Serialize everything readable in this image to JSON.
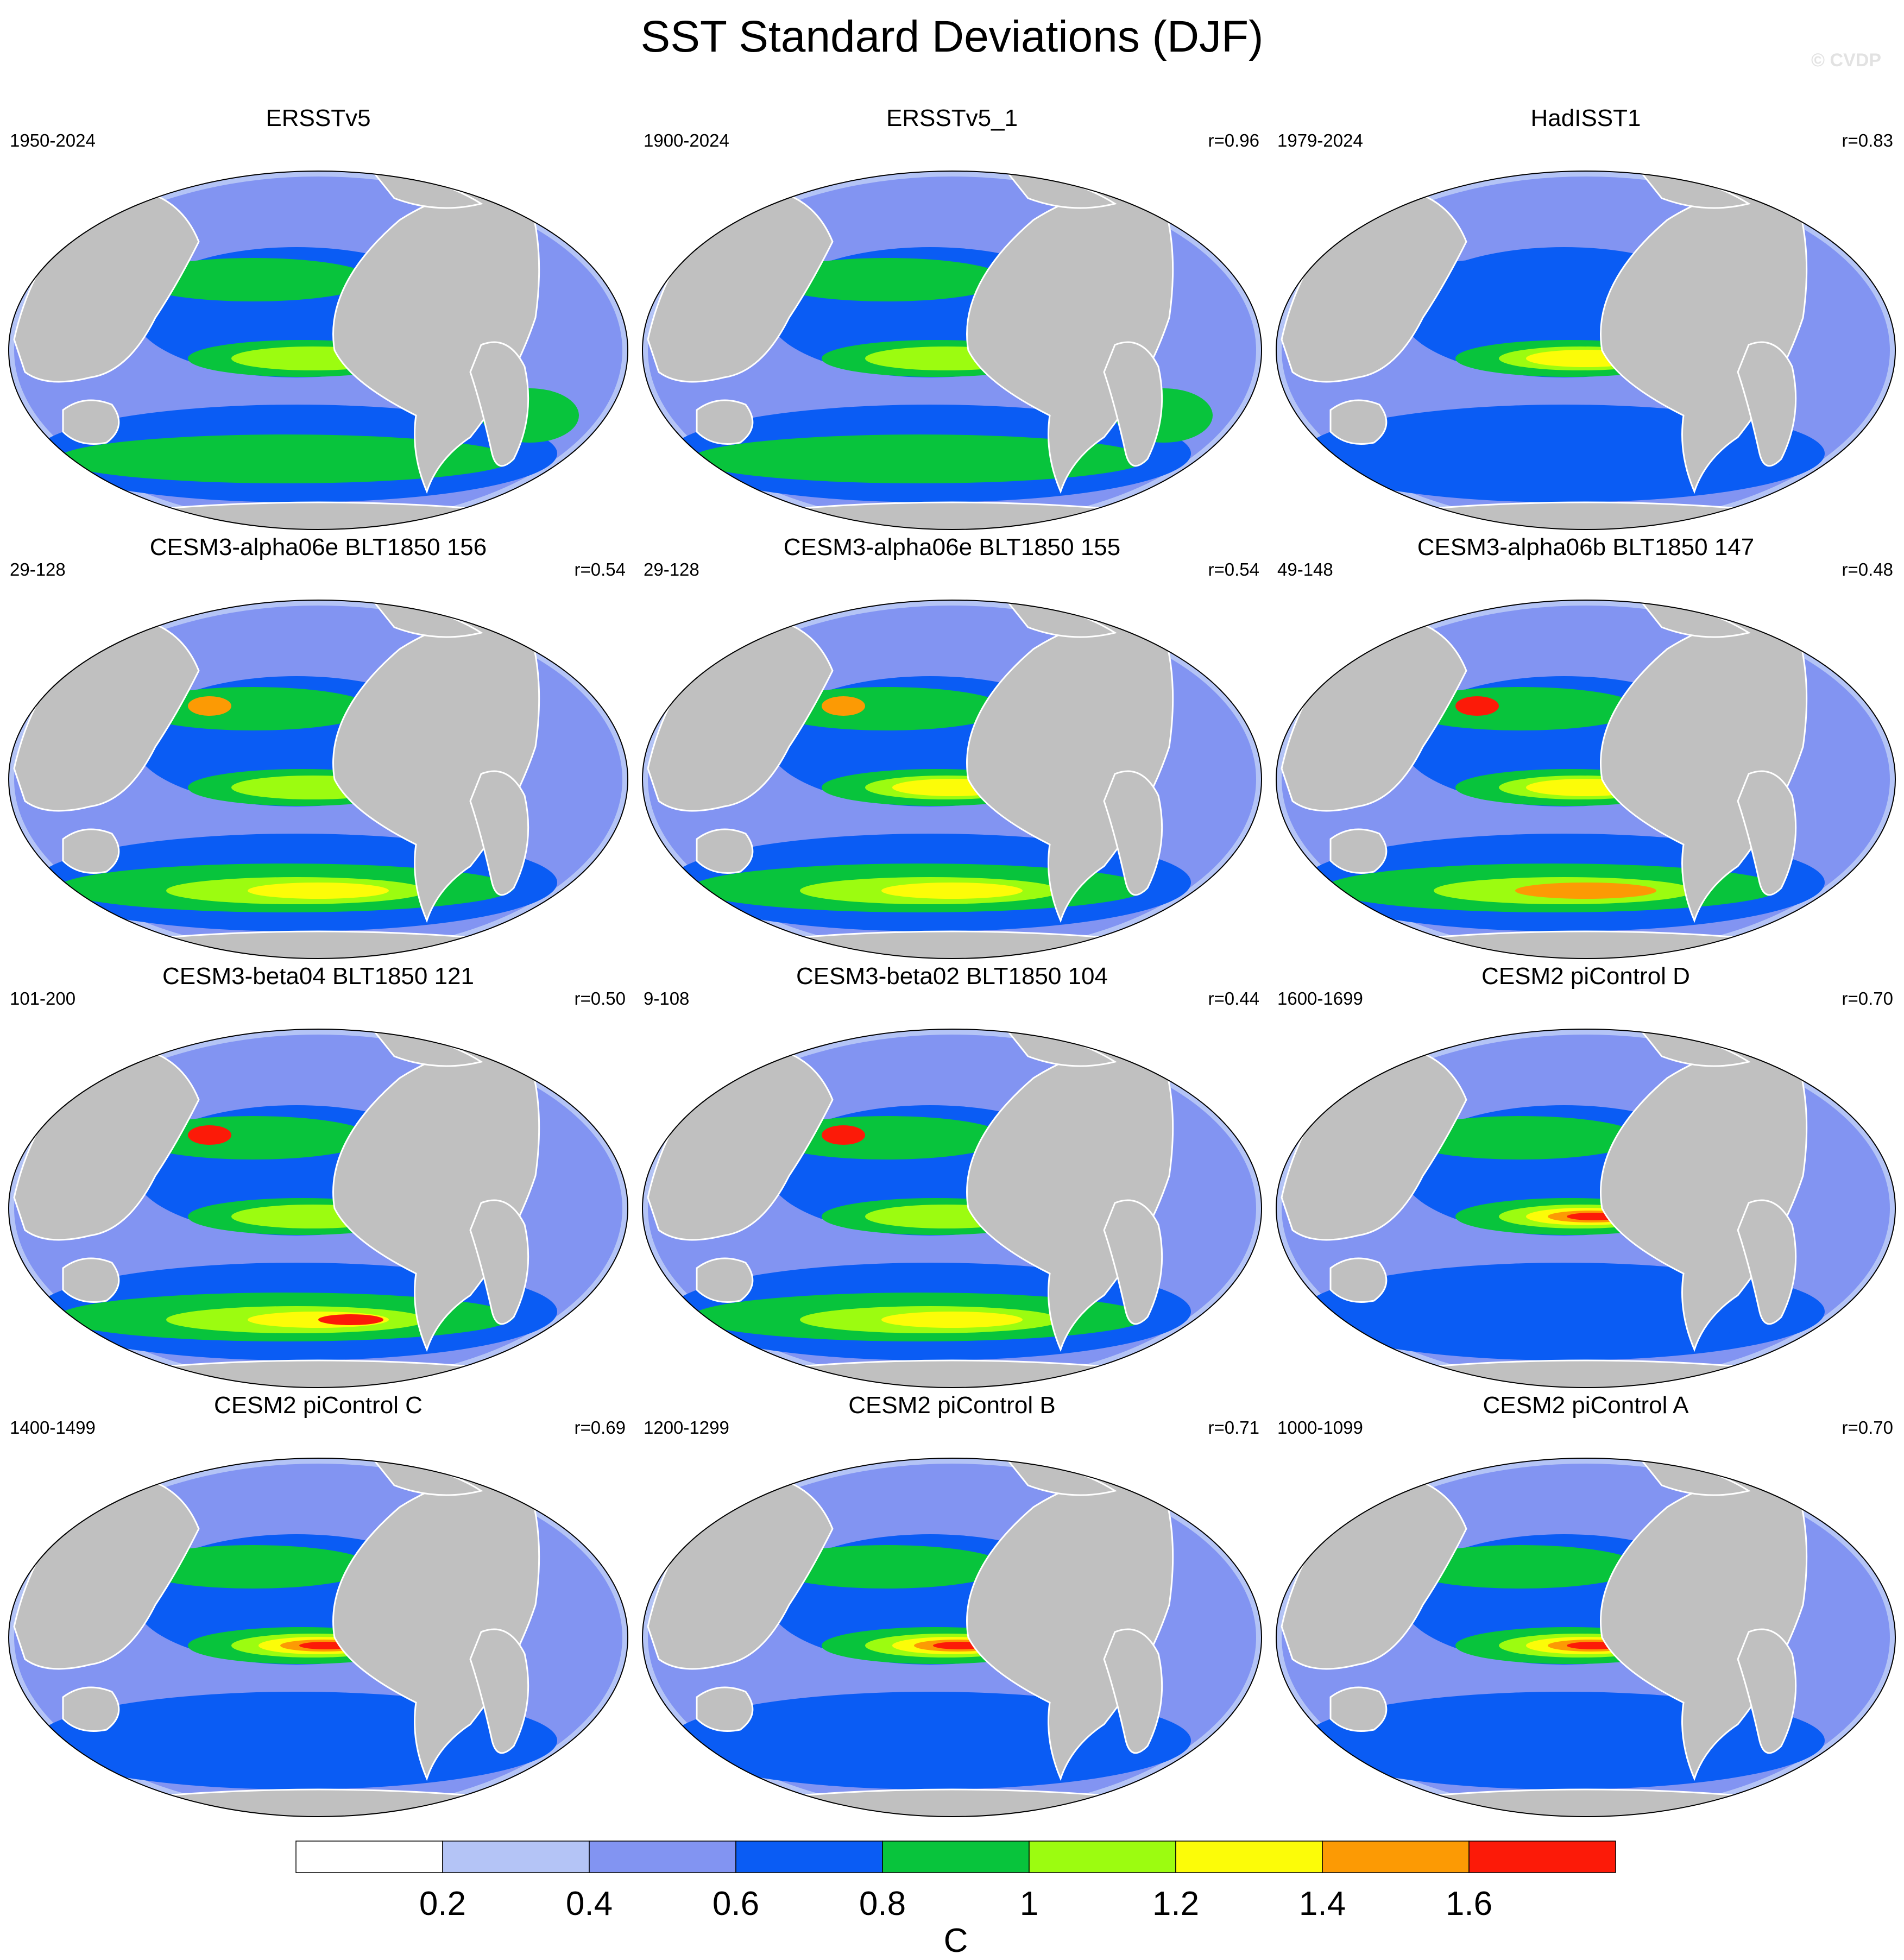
{
  "figure": {
    "title": "SST Standard Deviations (DJF)",
    "watermark": "© CVDP"
  },
  "chart_data": {
    "type": "heatmap",
    "projection": "Robinson (global map panels)",
    "land_color": "#c0c0c0",
    "panels": [
      {
        "title": "ERSSTv5",
        "years": "1950-2024",
        "corr": "",
        "equatorial_pacific_max_level": 1.2,
        "regions": [
          [
            "nino",
            [
              0.9,
              1.0,
              1.1
            ]
          ],
          [
            "n_pacific",
            [
              0.9
            ]
          ],
          [
            "n_atlantic",
            [
              0.8
            ]
          ],
          [
            "s_ocean",
            [
              0.9
            ]
          ],
          [
            "s_atlantic",
            [
              0.9
            ]
          ]
        ]
      },
      {
        "title": "ERSSTv5_1",
        "years": "1900-2024",
        "corr": "r=0.96",
        "equatorial_pacific_max_level": 1.2,
        "regions": [
          [
            "nino",
            [
              0.9,
              1.0,
              1.1
            ]
          ],
          [
            "n_pacific",
            [
              0.9
            ]
          ],
          [
            "n_atlantic",
            [
              0.8
            ]
          ],
          [
            "s_ocean",
            [
              0.9
            ]
          ],
          [
            "s_atlantic",
            [
              0.9
            ]
          ]
        ]
      },
      {
        "title": "HadISST1",
        "years": "1979-2024",
        "corr": "r=0.83",
        "equatorial_pacific_max_level": 1.4,
        "regions": [
          [
            "nino",
            [
              0.9,
              1.1,
              1.3
            ]
          ],
          [
            "n_pacific",
            [
              0.7
            ]
          ],
          [
            "n_atlantic",
            [
              0.9
            ]
          ],
          [
            "s_ocean",
            [
              0.7
            ]
          ]
        ]
      },
      {
        "title": "CESM3-alpha06e BLT1850 156",
        "years": "29-128",
        "corr": "r=0.54",
        "equatorial_pacific_max_level": 1.2,
        "regions": [
          [
            "nino",
            [
              0.9,
              1.1
            ]
          ],
          [
            "n_pacific",
            [
              0.9,
              1.5
            ]
          ],
          [
            "n_atlantic",
            [
              0.9,
              1.5,
              1.7
            ]
          ],
          [
            "s_ocean",
            [
              0.9,
              1.1,
              1.3
            ]
          ]
        ]
      },
      {
        "title": "CESM3-alpha06e BLT1850 155",
        "years": "29-128",
        "corr": "r=0.54",
        "equatorial_pacific_max_level": 1.4,
        "regions": [
          [
            "nino",
            [
              0.9,
              1.1,
              1.3
            ]
          ],
          [
            "n_pacific",
            [
              0.9,
              1.5
            ]
          ],
          [
            "n_atlantic",
            [
              0.9,
              1.5,
              1.7
            ]
          ],
          [
            "s_ocean",
            [
              0.9,
              1.1,
              1.3
            ]
          ]
        ]
      },
      {
        "title": "CESM3-alpha06b BLT1850 147",
        "years": "49-148",
        "corr": "r=0.48",
        "equatorial_pacific_max_level": 1.4,
        "regions": [
          [
            "nino",
            [
              0.9,
              1.1,
              1.3
            ]
          ],
          [
            "n_pacific",
            [
              0.9,
              1.7
            ]
          ],
          [
            "n_atlantic",
            [
              0.9,
              1.5,
              1.7
            ]
          ],
          [
            "s_ocean",
            [
              0.9,
              1.1,
              1.5
            ]
          ]
        ]
      },
      {
        "title": "CESM3-beta04 BLT1850 121",
        "years": "101-200",
        "corr": "r=0.50",
        "equatorial_pacific_max_level": 1.2,
        "regions": [
          [
            "nino",
            [
              0.9,
              1.1
            ]
          ],
          [
            "n_pacific",
            [
              0.9,
              1.7
            ]
          ],
          [
            "n_atlantic",
            [
              0.9,
              1.5,
              1.7
            ]
          ],
          [
            "s_ocean",
            [
              0.9,
              1.1,
              1.3,
              1.7
            ]
          ]
        ]
      },
      {
        "title": "CESM3-beta02 BLT1850 104",
        "years": "9-108",
        "corr": "r=0.44",
        "equatorial_pacific_max_level": 1.2,
        "regions": [
          [
            "nino",
            [
              0.9,
              1.1
            ]
          ],
          [
            "n_pacific",
            [
              0.9,
              1.7
            ]
          ],
          [
            "n_atlantic",
            [
              0.9,
              1.5,
              1.7
            ]
          ],
          [
            "s_ocean",
            [
              0.9,
              1.1,
              1.3
            ]
          ]
        ]
      },
      {
        "title": "CESM2 piControl D",
        "years": "1600-1699",
        "corr": "r=0.70",
        "equatorial_pacific_max_level": 1.8,
        "regions": [
          [
            "nino",
            [
              0.9,
              1.1,
              1.3,
              1.5,
              1.7
            ]
          ],
          [
            "n_pacific",
            [
              0.9
            ]
          ],
          [
            "n_atlantic",
            [
              0.9,
              1.5
            ]
          ],
          [
            "s_ocean",
            [
              0.7
            ]
          ]
        ]
      },
      {
        "title": "CESM2 piControl C",
        "years": "1400-1499",
        "corr": "r=0.69",
        "equatorial_pacific_max_level": 1.8,
        "regions": [
          [
            "nino",
            [
              0.9,
              1.1,
              1.3,
              1.5,
              1.7
            ]
          ],
          [
            "n_pacific",
            [
              0.9
            ]
          ],
          [
            "n_atlantic",
            [
              0.9,
              1.5
            ]
          ],
          [
            "s_ocean",
            [
              0.7
            ]
          ]
        ]
      },
      {
        "title": "CESM2 piControl B",
        "years": "1200-1299",
        "corr": "r=0.71",
        "equatorial_pacific_max_level": 1.8,
        "regions": [
          [
            "nino",
            [
              0.9,
              1.1,
              1.3,
              1.5,
              1.7
            ]
          ],
          [
            "n_pacific",
            [
              0.9
            ]
          ],
          [
            "n_atlantic",
            [
              0.9,
              1.5,
              1.7
            ]
          ],
          [
            "s_ocean",
            [
              0.7
            ]
          ]
        ]
      },
      {
        "title": "CESM2 piControl A",
        "years": "1000-1099",
        "corr": "r=0.70",
        "equatorial_pacific_max_level": 1.8,
        "regions": [
          [
            "nino",
            [
              0.9,
              1.1,
              1.3,
              1.5,
              1.7
            ]
          ],
          [
            "n_pacific",
            [
              0.9
            ]
          ],
          [
            "n_atlantic",
            [
              0.9,
              1.5
            ]
          ],
          [
            "s_ocean",
            [
              0.7
            ]
          ]
        ]
      }
    ],
    "colorbar": {
      "levels": [
        0.2,
        0.4,
        0.6,
        0.8,
        1,
        1.2,
        1.4,
        1.6
      ],
      "tick_labels": [
        "0.2",
        "0.4",
        "0.6",
        "0.8",
        "1",
        "1.2",
        "1.4",
        "1.6"
      ],
      "colors": [
        "#ffffff",
        "#b4c4f6",
        "#8294f2",
        "#0a5cf4",
        "#08c43c",
        "#9cfc10",
        "#fcfc08",
        "#fc9a04",
        "#fc1a08"
      ],
      "unit": "C"
    }
  }
}
